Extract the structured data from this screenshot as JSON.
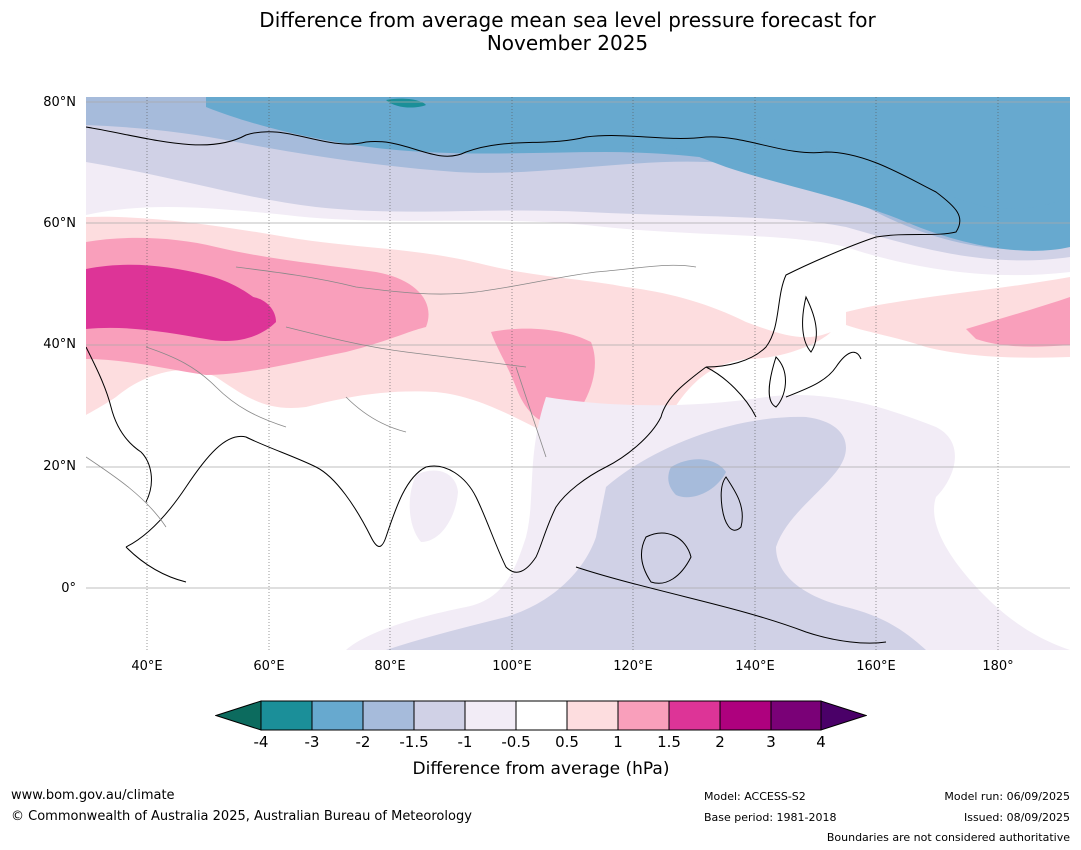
{
  "title": {
    "line1": "Difference from average mean sea level pressure forecast for",
    "line2": "November 2025"
  },
  "map": {
    "lat_labels": [
      "80°N",
      "60°N",
      "40°N",
      "20°N",
      "0°"
    ],
    "lon_labels": [
      "40°E",
      "60°E",
      "80°E",
      "100°E",
      "120°E",
      "140°E",
      "160°E",
      "180°"
    ],
    "lat_range": [
      "10°S",
      "80°N"
    ],
    "lon_range": [
      "30°E",
      "192°E"
    ],
    "grid": true
  },
  "colorbar": {
    "label": "Difference from average (hPa)",
    "ticks": [
      "-4",
      "-3",
      "-2",
      "-1.5",
      "-1",
      "-0.5",
      "0.5",
      "1",
      "1.5",
      "2",
      "3",
      "4"
    ],
    "colors": {
      "below_min": "#0c6b5e",
      "b1": "#1b8f99",
      "b2": "#67a9cf",
      "b3": "#a6bbdb",
      "b4": "#d0d1e6",
      "b5": "#f2ecf6",
      "b6": "#ffffff",
      "b7": "#fddddf",
      "b8": "#f99fbb",
      "b9": "#dd3497",
      "b10": "#ae017e",
      "b11": "#7a0177",
      "above_max": "#4a0068"
    }
  },
  "footer": {
    "website": "www.bom.gov.au/climate",
    "copyright": "© Commonwealth of Australia 2025, Australian Bureau of Meteorology",
    "model": "Model: ACCESS-S2",
    "base_period": "Base period: 1981-2018",
    "model_run": "Model run: 06/09/2025",
    "issued": "Issued: 08/09/2025",
    "disclaimer": "Boundaries are not considered authoritative"
  }
}
